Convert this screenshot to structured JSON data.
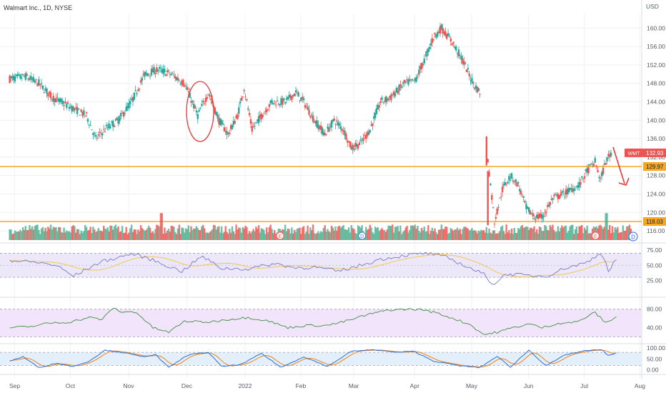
{
  "header": {
    "title": "Walmart Inc., 1D, NYSE",
    "currency": "USD"
  },
  "colors": {
    "up": "#26a69a",
    "down": "#ef5350",
    "hline": "#f5a623",
    "volume_up": "#4caf8f",
    "volume_down": "#ef5350",
    "rsi_line": "#7b77c9",
    "rsi_signal": "#f2c94c",
    "rsi_band": "#ece8fa",
    "mid_line": "#3f8f43",
    "mid_band": "#f1e4fb",
    "stoch_k": "#2f6fd6",
    "stoch_d": "#f08a24",
    "stoch_band": "#e3f0fb",
    "annotation": "#e53935",
    "label_bg": "#ef5350"
  },
  "chart_data": {
    "type": "candlestick",
    "title": "Walmart Inc., 1D, NYSE",
    "symbol": "WMT",
    "last_price": "132.93",
    "price_axis": {
      "ticks": [
        "160.00",
        "156.00",
        "152.00",
        "148.00",
        "144.00",
        "140.00",
        "136.00",
        "132.00",
        "128.00",
        "124.00",
        "120.00",
        "116.00"
      ],
      "range": [
        114,
        163
      ]
    },
    "x_ticks": [
      "Sep",
      "Oct",
      "Nov",
      "Dec",
      "2022",
      "Feb",
      "Mar",
      "Apr",
      "May",
      "Jun",
      "Jul",
      "Aug"
    ],
    "horizontal_lines": [
      {
        "value": 129.97,
        "label": "129.97"
      },
      {
        "value": 118.03,
        "label": "118.03"
      }
    ],
    "price_keypoints": [
      [
        0,
        149
      ],
      [
        12,
        149.5
      ],
      [
        22,
        148
      ],
      [
        32,
        145
      ],
      [
        45,
        143
      ],
      [
        58,
        141
      ],
      [
        65,
        136
      ],
      [
        72,
        138
      ],
      [
        82,
        140
      ],
      [
        92,
        144
      ],
      [
        102,
        150
      ],
      [
        112,
        151
      ],
      [
        122,
        150
      ],
      [
        132,
        148
      ],
      [
        142,
        141
      ],
      [
        150,
        146
      ],
      [
        158,
        140
      ],
      [
        165,
        137
      ],
      [
        172,
        141
      ],
      [
        177,
        147
      ],
      [
        183,
        138
      ],
      [
        190,
        141
      ],
      [
        198,
        144
      ],
      [
        208,
        144
      ],
      [
        216,
        146
      ],
      [
        222,
        144
      ],
      [
        230,
        140
      ],
      [
        238,
        137
      ],
      [
        245,
        140
      ],
      [
        252,
        138
      ],
      [
        258,
        134
      ],
      [
        265,
        135
      ],
      [
        272,
        138
      ],
      [
        280,
        144
      ],
      [
        288,
        145
      ],
      [
        298,
        148
      ],
      [
        306,
        148.5
      ],
      [
        313,
        153
      ],
      [
        320,
        158
      ],
      [
        326,
        160
      ],
      [
        334,
        157
      ],
      [
        342,
        153
      ],
      [
        350,
        148
      ],
      [
        355,
        146
      ]
    ],
    "price_keypoints_2": [
      [
        360,
        134
      ],
      [
        366,
        118
      ],
      [
        372,
        125
      ],
      [
        378,
        128
      ],
      [
        384,
        126
      ],
      [
        390,
        121
      ],
      [
        396,
        119
      ],
      [
        402,
        119
      ],
      [
        410,
        123
      ],
      [
        418,
        124
      ],
      [
        424,
        125
      ],
      [
        430,
        126
      ],
      [
        436,
        129
      ],
      [
        442,
        131
      ],
      [
        446,
        127
      ],
      [
        450,
        131
      ],
      [
        454,
        133
      ]
    ],
    "volume_spikes": [
      [
        28,
        9
      ],
      [
        110,
        9
      ],
      [
        129,
        8
      ],
      [
        155,
        8
      ],
      [
        358,
        7
      ],
      [
        449,
        7
      ]
    ],
    "earnings_markers": [
      {
        "label": "E",
        "index": 110
      },
      {
        "label": "D",
        "index": 143
      },
      {
        "label": "E",
        "index": 237
      },
      {
        "label": "D",
        "index": 274
      },
      {
        "label": "E",
        "index": 342
      },
      {
        "label": "D",
        "index": 357
      }
    ],
    "dividend_marker": "D",
    "panel_rsi": {
      "ticks": [
        "75.00",
        "50.00",
        "25.00"
      ],
      "range": [
        10,
        80
      ],
      "bands": [
        30,
        70
      ],
      "keypoints": [
        [
          0,
          58
        ],
        [
          20,
          55
        ],
        [
          35,
          50
        ],
        [
          48,
          32
        ],
        [
          55,
          40
        ],
        [
          68,
          55
        ],
        [
          80,
          62
        ],
        [
          92,
          69
        ],
        [
          104,
          62
        ],
        [
          118,
          50
        ],
        [
          130,
          40
        ],
        [
          145,
          65
        ],
        [
          160,
          45
        ],
        [
          180,
          44
        ],
        [
          200,
          53
        ],
        [
          215,
          46
        ],
        [
          230,
          47
        ],
        [
          248,
          40
        ],
        [
          262,
          48
        ],
        [
          280,
          60
        ],
        [
          300,
          67
        ],
        [
          316,
          70
        ],
        [
          330,
          63
        ],
        [
          348,
          45
        ],
        [
          358,
          35
        ],
        [
          365,
          18
        ],
        [
          375,
          36
        ],
        [
          390,
          33
        ],
        [
          405,
          32
        ],
        [
          420,
          46
        ],
        [
          435,
          54
        ],
        [
          447,
          72
        ],
        [
          452,
          40
        ],
        [
          458,
          60
        ]
      ]
    },
    "panel_mid": {
      "ticks": [
        "80.00",
        "40.00"
      ],
      "range": [
        10,
        95
      ],
      "bands": [
        20,
        80
      ],
      "keypoints": [
        [
          0,
          40
        ],
        [
          15,
          42
        ],
        [
          30,
          50
        ],
        [
          45,
          52
        ],
        [
          60,
          62
        ],
        [
          70,
          58
        ],
        [
          78,
          83
        ],
        [
          85,
          73
        ],
        [
          95,
          75
        ],
        [
          108,
          40
        ],
        [
          120,
          30
        ],
        [
          132,
          54
        ],
        [
          150,
          52
        ],
        [
          165,
          58
        ],
        [
          180,
          62
        ],
        [
          195,
          55
        ],
        [
          210,
          40
        ],
        [
          225,
          45
        ],
        [
          240,
          45
        ],
        [
          255,
          55
        ],
        [
          270,
          68
        ],
        [
          285,
          78
        ],
        [
          300,
          80
        ],
        [
          312,
          79
        ],
        [
          322,
          72
        ],
        [
          335,
          60
        ],
        [
          348,
          46
        ],
        [
          358,
          25
        ],
        [
          368,
          30
        ],
        [
          380,
          40
        ],
        [
          392,
          48
        ],
        [
          402,
          40
        ],
        [
          415,
          50
        ],
        [
          428,
          52
        ],
        [
          442,
          73
        ],
        [
          450,
          50
        ],
        [
          460,
          68
        ]
      ]
    },
    "panel_stoch": {
      "ticks": [
        "100.00",
        "50.00",
        "0.00"
      ],
      "range": [
        -5,
        110
      ],
      "bands": [
        20,
        80
      ],
      "keypoints": [
        [
          0,
          40
        ],
        [
          10,
          60
        ],
        [
          22,
          10
        ],
        [
          35,
          30
        ],
        [
          48,
          15
        ],
        [
          60,
          40
        ],
        [
          72,
          90
        ],
        [
          85,
          80
        ],
        [
          100,
          60
        ],
        [
          110,
          70
        ],
        [
          120,
          10
        ],
        [
          135,
          70
        ],
        [
          150,
          80
        ],
        [
          160,
          15
        ],
        [
          175,
          25
        ],
        [
          190,
          75
        ],
        [
          205,
          10
        ],
        [
          222,
          60
        ],
        [
          240,
          15
        ],
        [
          258,
          85
        ],
        [
          275,
          92
        ],
        [
          292,
          80
        ],
        [
          305,
          85
        ],
        [
          320,
          40
        ],
        [
          340,
          18
        ],
        [
          355,
          10
        ],
        [
          368,
          62
        ],
        [
          378,
          12
        ],
        [
          392,
          90
        ],
        [
          405,
          18
        ],
        [
          420,
          70
        ],
        [
          435,
          88
        ],
        [
          447,
          92
        ],
        [
          452,
          65
        ],
        [
          458,
          78
        ]
      ]
    }
  }
}
